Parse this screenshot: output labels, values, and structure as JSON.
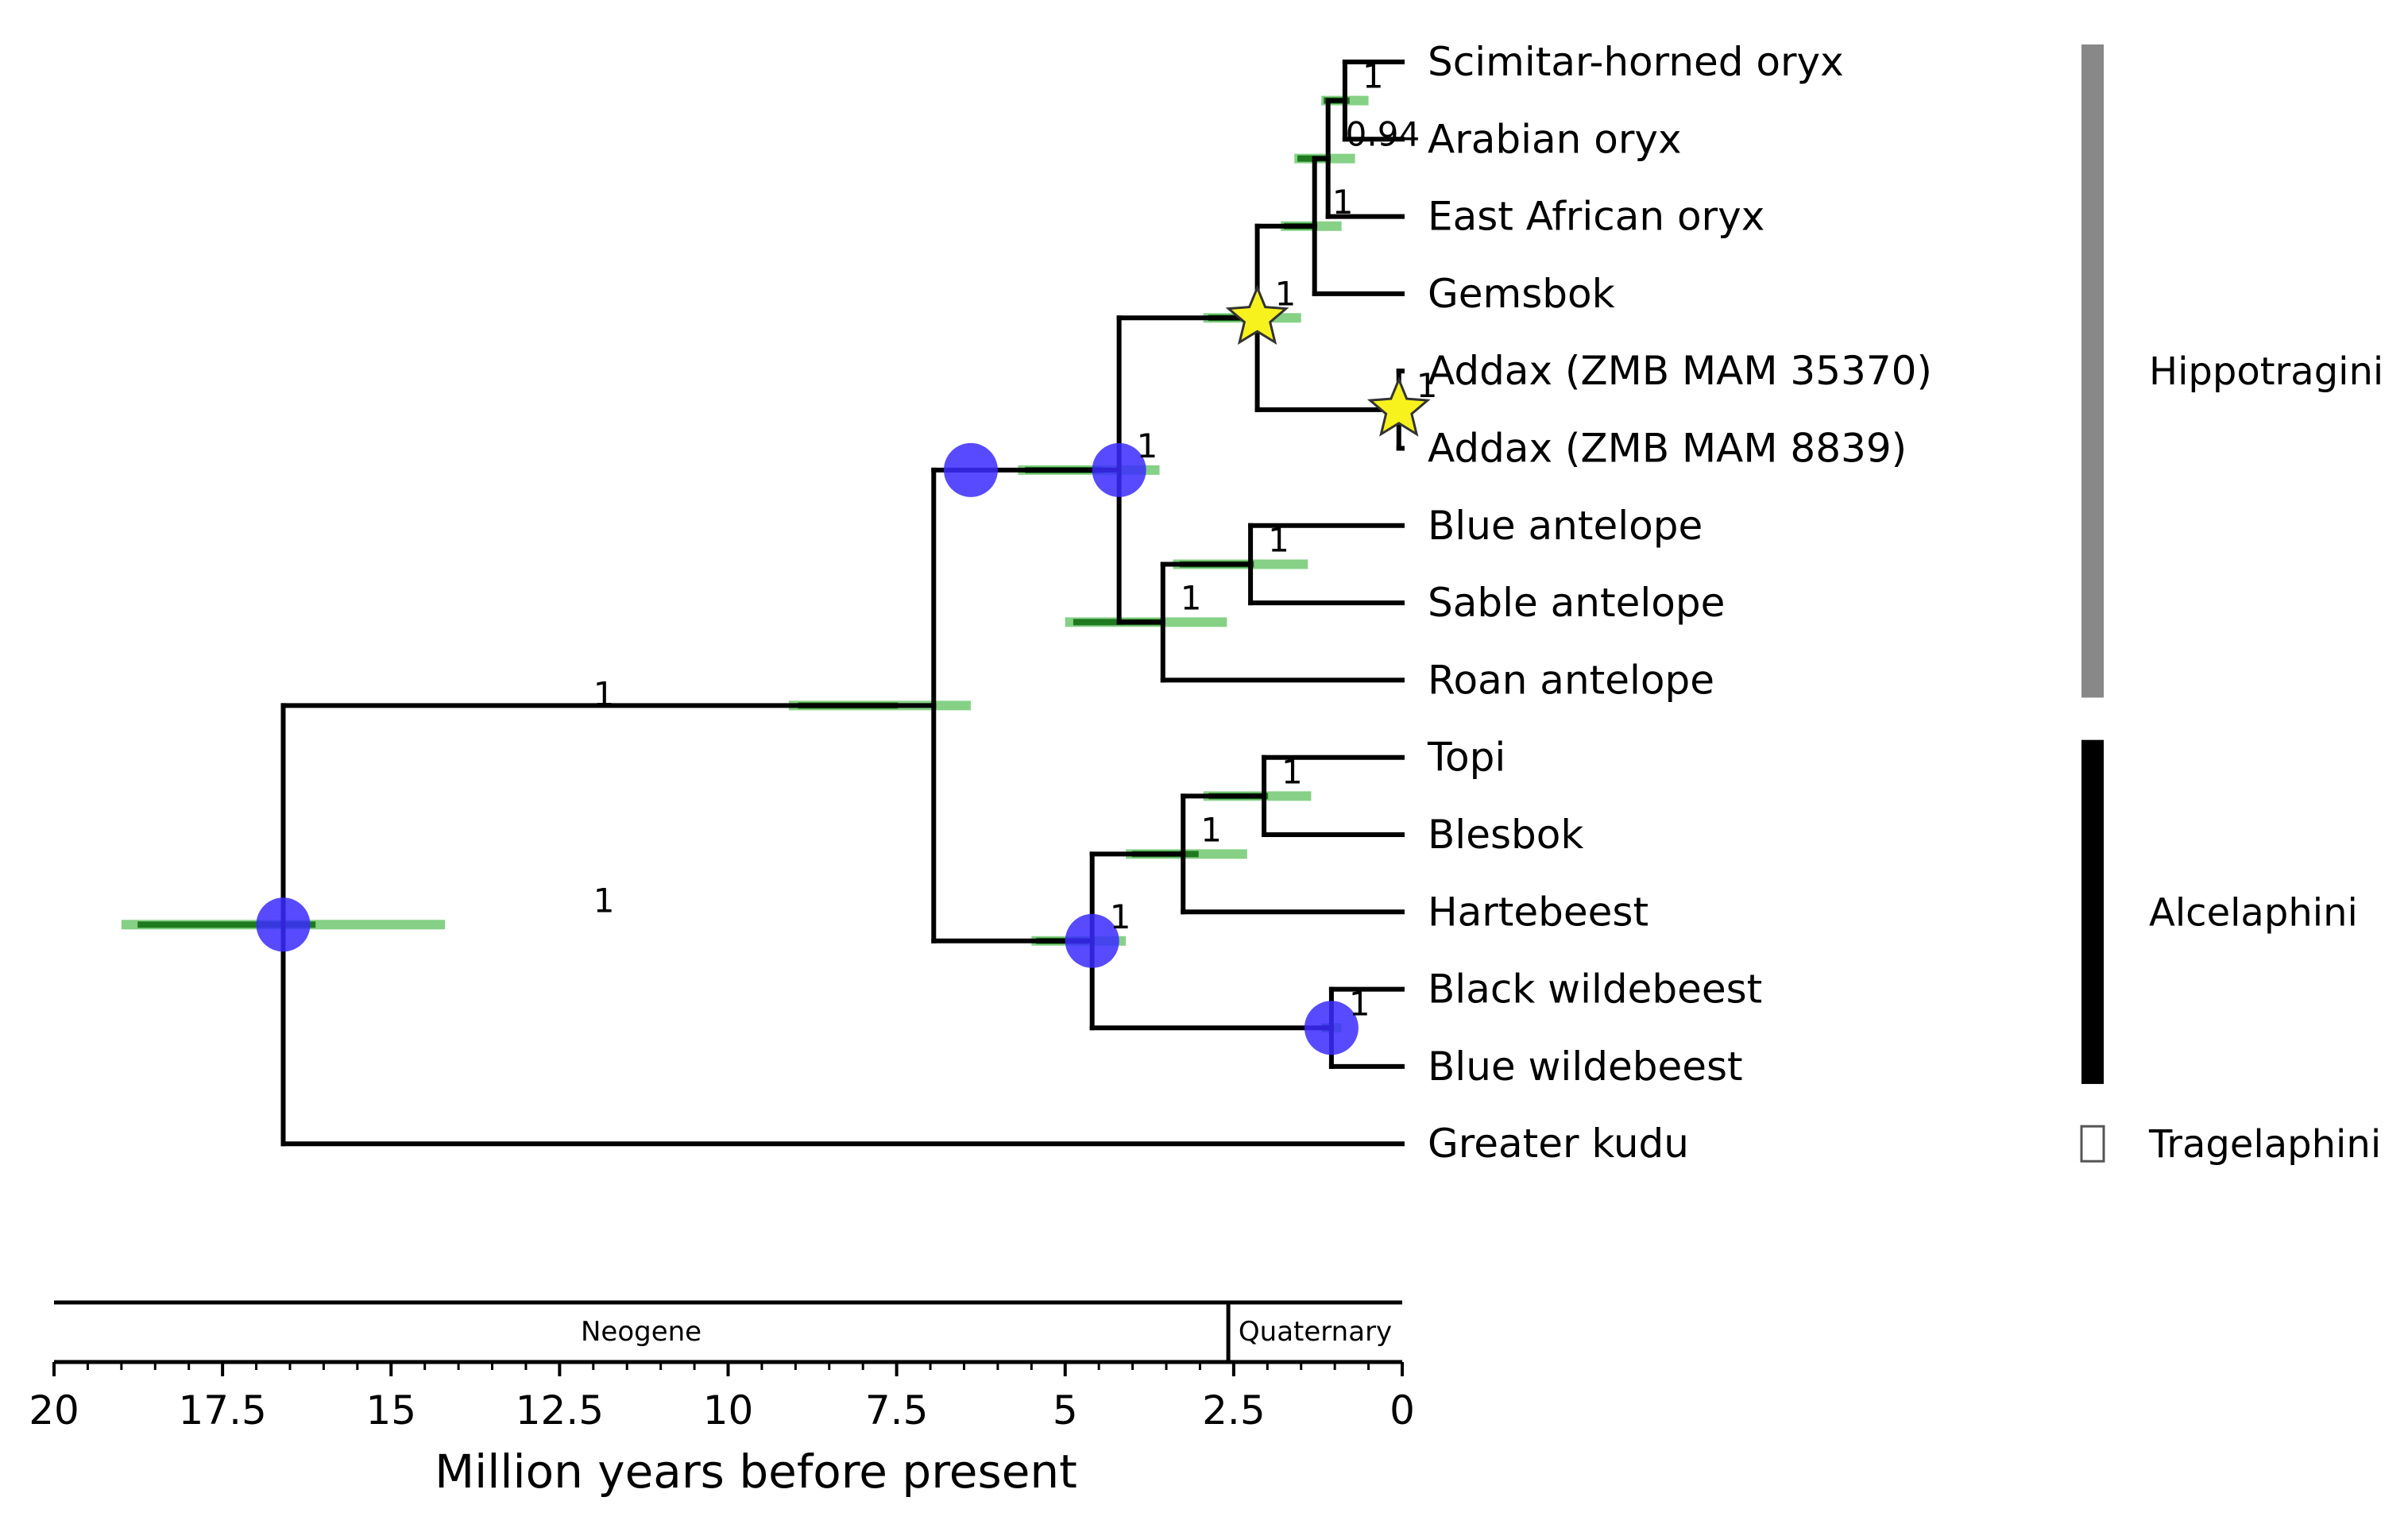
{
  "chart_data": {
    "type": "phylogenetic-tree",
    "x_axis": {
      "title": "Million years before present",
      "range": [
        20,
        0
      ],
      "tick_labels": [
        "20",
        "17.5",
        "15",
        "12.5",
        "10",
        "7.5",
        "5",
        "2.5",
        "0"
      ],
      "tick_values": [
        20,
        17.5,
        15,
        12.5,
        10,
        7.5,
        5,
        2.5,
        0
      ],
      "minor_step": 0.5
    },
    "geologic_periods": [
      {
        "name": "Neogene",
        "start": 20,
        "end": 2.58
      },
      {
        "name": "Quaternary",
        "start": 2.58,
        "end": 0
      }
    ],
    "taxa": [
      "Scimitar-horned oryx",
      "Arabian oryx",
      "East African oryx",
      "Gemsbok",
      "Addax (ZMB MAM 35370)",
      "Addax (ZMB MAM 8839)",
      "Blue antelope",
      "Sable antelope",
      "Roan antelope",
      "Topi",
      "Blesbok",
      "Hartebeest",
      "Black wildebeest",
      "Blue wildebeest",
      "Greater kudu"
    ],
    "nodes": [
      {
        "id": "n_oryx_sa",
        "age": 0.85,
        "children": [
          "Scimitar-horned oryx",
          "Arabian oryx"
        ],
        "support": "1",
        "hpd": [
          0.5,
          1.2
        ]
      },
      {
        "id": "n_oryx_ea",
        "age": 1.1,
        "children": [
          "n_oryx_sa",
          "East African oryx"
        ],
        "support": "0.94",
        "hpd": [
          0.7,
          1.6
        ]
      },
      {
        "id": "n_oryx",
        "age": 1.3,
        "children": [
          "n_oryx_ea",
          "Gemsbok"
        ],
        "support": "1",
        "hpd": [
          0.9,
          1.8
        ]
      },
      {
        "id": "n_addax",
        "age": 0.05,
        "children": [
          "Addax (ZMB MAM 35370)",
          "Addax (ZMB MAM 8839)"
        ],
        "support": "1",
        "hpd": [
          0.0,
          0.1
        ],
        "fossil": true
      },
      {
        "id": "n_oryx_addax",
        "age": 2.15,
        "children": [
          "n_oryx",
          "n_addax"
        ],
        "support": "1",
        "hpd": [
          1.5,
          2.95
        ],
        "fossil": true
      },
      {
        "id": "n_blue_sable",
        "age": 2.25,
        "children": [
          "Blue antelope",
          "Sable antelope"
        ],
        "support": "1",
        "hpd": [
          1.4,
          3.4
        ]
      },
      {
        "id": "n_hippotragus",
        "age": 3.55,
        "children": [
          "n_blue_sable",
          "Roan antelope"
        ],
        "support": "1",
        "hpd": [
          2.6,
          5.0
        ]
      },
      {
        "id": "n_hippotragini",
        "age": 4.2,
        "children": [
          "n_oryx_addax",
          "n_hippotragus"
        ],
        "support": "1",
        "hpd": [
          3.6,
          5.7
        ],
        "calibration": true
      },
      {
        "id": "n_topi_blesbok",
        "age": 2.05,
        "children": [
          "Topi",
          "Blesbok"
        ],
        "support": "1",
        "hpd": [
          1.35,
          2.95
        ]
      },
      {
        "id": "n_alcelaphus",
        "age": 3.25,
        "children": [
          "n_topi_blesbok",
          "Hartebeest"
        ],
        "support": "1",
        "hpd": [
          2.3,
          4.1
        ]
      },
      {
        "id": "n_wildebeest",
        "age": 1.05,
        "children": [
          "Black wildebeest",
          "Blue wildebeest"
        ],
        "support": "1",
        "hpd": [
          0.9,
          1.2
        ],
        "calibration": true
      },
      {
        "id": "n_alcelaphini",
        "age": 4.6,
        "children": [
          "n_alcelaphus",
          "n_wildebeest"
        ],
        "support": "1",
        "hpd": [
          4.1,
          5.5
        ],
        "calibration": true
      },
      {
        "id": "n_hippo_alcel",
        "age": 6.95,
        "children": [
          "n_hippotragini",
          "n_alcelaphini"
        ],
        "support": "1",
        "hpd": [
          6.4,
          9.1
        ],
        "calibration_on_stem": 6.4
      },
      {
        "id": "root",
        "age": 16.6,
        "children": [
          "n_hippo_alcel",
          "Greater kudu"
        ],
        "support": "1",
        "hpd": [
          14.2,
          19.0
        ],
        "calibration": true
      }
    ],
    "clades": [
      {
        "name": "Hippotragini",
        "color": "#888888",
        "from": "Scimitar-horned oryx",
        "to": "Roan antelope"
      },
      {
        "name": "Alcelaphini",
        "color": "#000000",
        "from": "Topi",
        "to": "Blue wildebeest"
      },
      {
        "name": "Tragelaphini",
        "color": "#ffffff",
        "from": "Greater kudu",
        "to": "Greater kudu"
      }
    ],
    "colors": {
      "calibration": "#3b2cff",
      "fossil": "#f7f21e",
      "hpd_light": "#7fcf7f",
      "hpd_dark": "#1f7a1f"
    }
  }
}
